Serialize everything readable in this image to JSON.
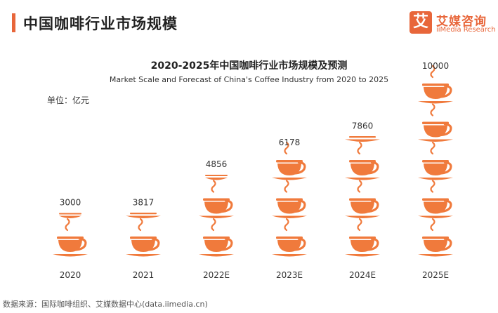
{
  "header": {
    "title": "中国咖啡行业市场规模",
    "logo_mark": "艾",
    "logo_cn": "艾媒咨询",
    "logo_en": "iiMedia Research"
  },
  "chart_data": {
    "type": "bar",
    "title": "2020-2025年中国咖啡行业市场规模及预测",
    "subtitle": "Market Scale and Forecast of China's Coffee Industry from 2020 to 2025",
    "unit_label": "单位：亿元",
    "categories": [
      "2020",
      "2021",
      "2022E",
      "2023E",
      "2024E",
      "2025E"
    ],
    "values": [
      3000,
      3817,
      4856,
      6178,
      7860,
      10000
    ],
    "value_per_cup": 2000,
    "xlabel": "",
    "ylabel": "",
    "grid": false,
    "legend": "none"
  },
  "colors": {
    "accent": "#e8663a",
    "cup": "#f07a3c"
  },
  "footer": {
    "source": "数据来源：国际咖啡组织、艾媒数据中心(data.iimedia.cn)"
  }
}
